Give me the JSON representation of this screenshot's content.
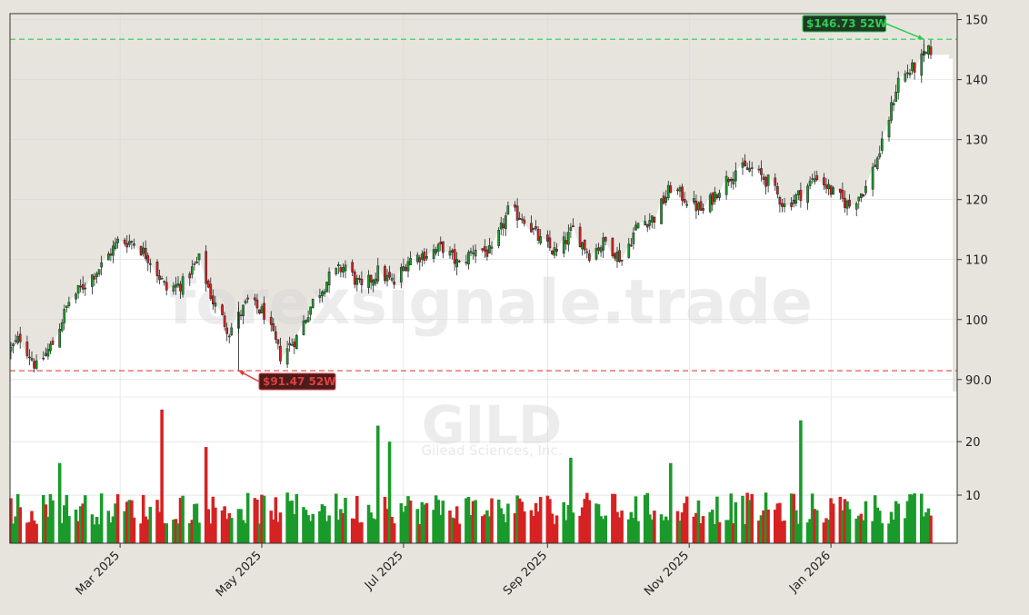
{
  "page": {
    "watermark_main": "forexsignale.trade",
    "watermark_ticker": "GILD",
    "watermark_company": "Gilead Sciences, Inc.",
    "colors": {
      "background": "#e7e4de",
      "up": "#1a9a2a",
      "down": "#d62222",
      "high_line": "#2ecc55",
      "low_line": "#e04040",
      "grid": "#d8d8d8"
    }
  },
  "chart_data": [
    {
      "type": "candlestick",
      "title": "",
      "xlabel": "",
      "ylabel": "",
      "x_range": [
        "2025-01-13",
        "2026-02-13"
      ],
      "ylim": [
        88,
        151
      ],
      "y_ticks": [
        90,
        100,
        110,
        120,
        130,
        140,
        150
      ],
      "y_tick_labels": [
        "90.0",
        "100",
        "110",
        "120",
        "130",
        "140",
        "150"
      ],
      "x_ticks": [
        "2025-03-01",
        "2025-05-01",
        "2025-07-01",
        "2025-09-01",
        "2025-11-01",
        "2026-01-01"
      ],
      "x_tick_labels": [
        "Mar 2025",
        "May 2025",
        "Jul 2025",
        "Sep 2025",
        "Nov 2025",
        "Jan 2026"
      ],
      "grid": true,
      "shading": "area above the close line filled",
      "annotations": [
        {
          "label": "$146.73 52W",
          "value": 146.73,
          "date": "2026-02-10",
          "kind": "52-week high"
        },
        {
          "label": "$91.47 52W",
          "value": 91.47,
          "date": "2025-04-21",
          "kind": "52-week low"
        }
      ],
      "close_series": [
        [
          "2025-01-13",
          95
        ],
        [
          "2025-01-17",
          97
        ],
        [
          "2025-01-24",
          92
        ],
        [
          "2025-01-31",
          96
        ],
        [
          "2025-02-07",
          103
        ],
        [
          "2025-02-14",
          106
        ],
        [
          "2025-02-21",
          109
        ],
        [
          "2025-02-28",
          113
        ],
        [
          "2025-03-07",
          113
        ],
        [
          "2025-03-14",
          110
        ],
        [
          "2025-03-21",
          105
        ],
        [
          "2025-03-28",
          106
        ],
        [
          "2025-04-04",
          110
        ],
        [
          "2025-04-10",
          103
        ],
        [
          "2025-04-17",
          98
        ],
        [
          "2025-04-25",
          103
        ],
        [
          "2025-05-02",
          101
        ],
        [
          "2025-05-09",
          94
        ],
        [
          "2025-05-16",
          97
        ],
        [
          "2025-05-23",
          103
        ],
        [
          "2025-05-30",
          107
        ],
        [
          "2025-06-06",
          109
        ],
        [
          "2025-06-13",
          105
        ],
        [
          "2025-06-20",
          108
        ],
        [
          "2025-06-27",
          106
        ],
        [
          "2025-07-03",
          110
        ],
        [
          "2025-07-11",
          111
        ],
        [
          "2025-07-18",
          112
        ],
        [
          "2025-07-25",
          109
        ],
        [
          "2025-08-01",
          112
        ],
        [
          "2025-08-08",
          111
        ],
        [
          "2025-08-15",
          118
        ],
        [
          "2025-08-22",
          117
        ],
        [
          "2025-08-29",
          113
        ],
        [
          "2025-09-05",
          111
        ],
        [
          "2025-09-12",
          115
        ],
        [
          "2025-09-19",
          111
        ],
        [
          "2025-09-26",
          113
        ],
        [
          "2025-10-03",
          110
        ],
        [
          "2025-10-10",
          116
        ],
        [
          "2025-10-17",
          117
        ],
        [
          "2025-10-24",
          122
        ],
        [
          "2025-10-31",
          120
        ],
        [
          "2025-11-07",
          118
        ],
        [
          "2025-11-14",
          122
        ],
        [
          "2025-11-21",
          125
        ],
        [
          "2025-11-28",
          125
        ],
        [
          "2025-12-05",
          123
        ],
        [
          "2025-12-12",
          119
        ],
        [
          "2025-12-19",
          121
        ],
        [
          "2025-12-26",
          124
        ],
        [
          "2026-01-02",
          121
        ],
        [
          "2026-01-09",
          119
        ],
        [
          "2026-01-16",
          122
        ],
        [
          "2026-01-23",
          129
        ],
        [
          "2026-01-30",
          140
        ],
        [
          "2026-02-06",
          142
        ],
        [
          "2026-02-13",
          145
        ]
      ]
    },
    {
      "type": "bar",
      "title": "",
      "xlabel": "",
      "ylabel": "",
      "ylim": [
        1,
        27
      ],
      "y_ticks": [
        10,
        20
      ],
      "y_tick_labels": [
        "10",
        "20"
      ],
      "spikes": [
        {
          "date": "2025-03-19",
          "value": 26
        },
        {
          "date": "2025-06-20",
          "value": 23
        },
        {
          "date": "2025-06-25",
          "value": 20
        },
        {
          "date": "2025-12-19",
          "value": 24
        },
        {
          "date": "2025-04-07",
          "value": 19
        },
        {
          "date": "2025-09-11",
          "value": 17
        },
        {
          "date": "2025-10-24",
          "value": 16
        },
        {
          "date": "2025-02-03",
          "value": 16
        }
      ]
    }
  ]
}
